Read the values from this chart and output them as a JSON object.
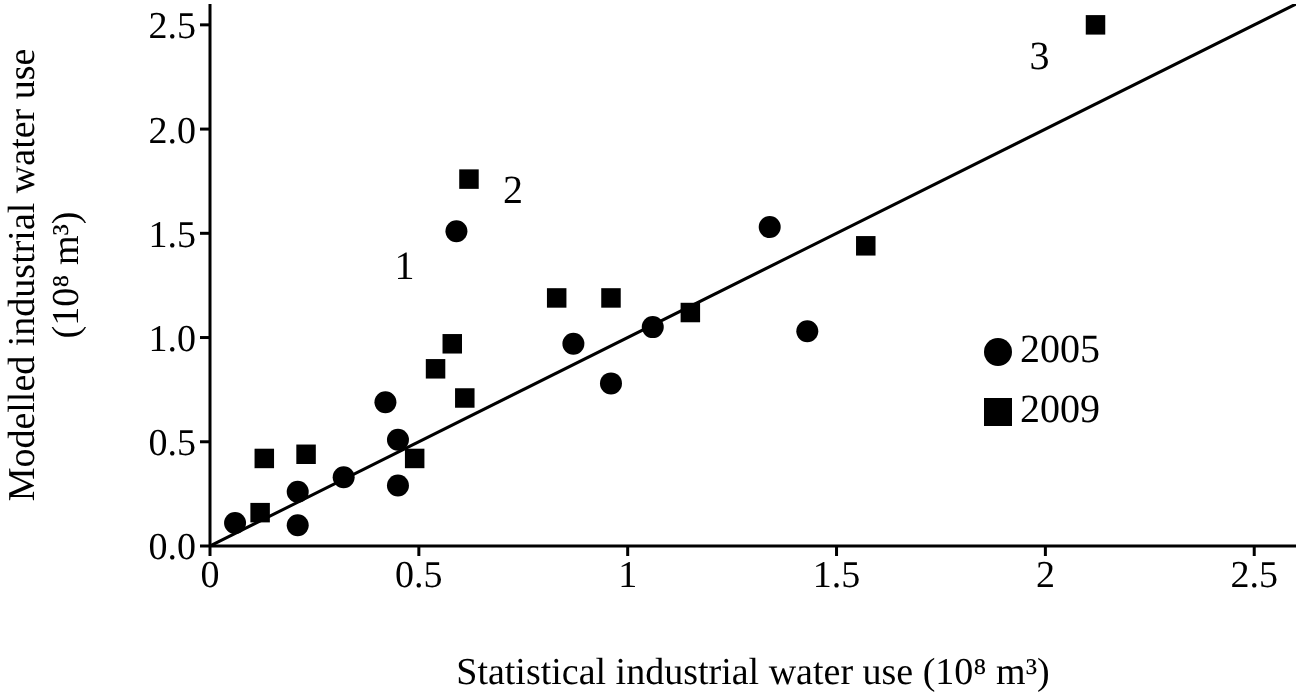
{
  "chart_data": {
    "type": "scatter",
    "xlabel": "Statistical industrial water use (10⁸ m³)",
    "ylabel": "Modelled industrial water use (10⁸ m³)",
    "xlim": [
      0,
      2.6
    ],
    "ylim": [
      0,
      2.6
    ],
    "xticks": [
      0,
      0.5,
      1,
      1.5,
      2,
      2.5
    ],
    "yticks": [
      {
        "value": 0,
        "label": "0.0"
      },
      {
        "value": 0.5,
        "label": "0.5"
      },
      {
        "value": 1,
        "label": "1.0"
      },
      {
        "value": 1.5,
        "label": "1.5"
      },
      {
        "value": 2,
        "label": "2.0"
      },
      {
        "value": 2.5,
        "label": "2.5"
      }
    ],
    "grid": false,
    "legend": "bottom right",
    "series": [
      {
        "name": "2005",
        "color": "#000000",
        "marker": "circle",
        "x": [
          0.06,
          0.21,
          0.21,
          0.32,
          0.42,
          0.45,
          0.45,
          0.59,
          0.87,
          0.96,
          1.06,
          1.34,
          1.43
        ],
        "values": [
          0.11,
          0.26,
          0.1,
          0.33,
          0.69,
          0.51,
          0.29,
          1.51,
          0.97,
          0.78,
          1.05,
          1.53,
          1.03
        ]
      },
      {
        "name": "2009",
        "color": "#000000",
        "marker": "square",
        "x": [
          0.12,
          0.13,
          0.23,
          0.49,
          0.54,
          0.58,
          0.61,
          0.62,
          0.83,
          0.96,
          1.15,
          1.57,
          2.12
        ],
        "values": [
          0.16,
          0.42,
          0.44,
          0.42,
          0.85,
          0.97,
          0.71,
          1.76,
          1.19,
          1.19,
          1.12,
          1.44,
          2.5
        ]
      },
      {
        "type": "line",
        "color": "#000000",
        "marker": "none",
        "line_style": "solid",
        "x": [
          0,
          2.6
        ],
        "values": [
          0,
          2.6
        ]
      }
    ],
    "annotations": [
      {
        "text": "1",
        "x": 0.59,
        "y": 1.51
      },
      {
        "text": "2",
        "x": 0.62,
        "y": 1.76
      },
      {
        "text": "3",
        "x": 2.12,
        "y": 2.5
      }
    ]
  }
}
